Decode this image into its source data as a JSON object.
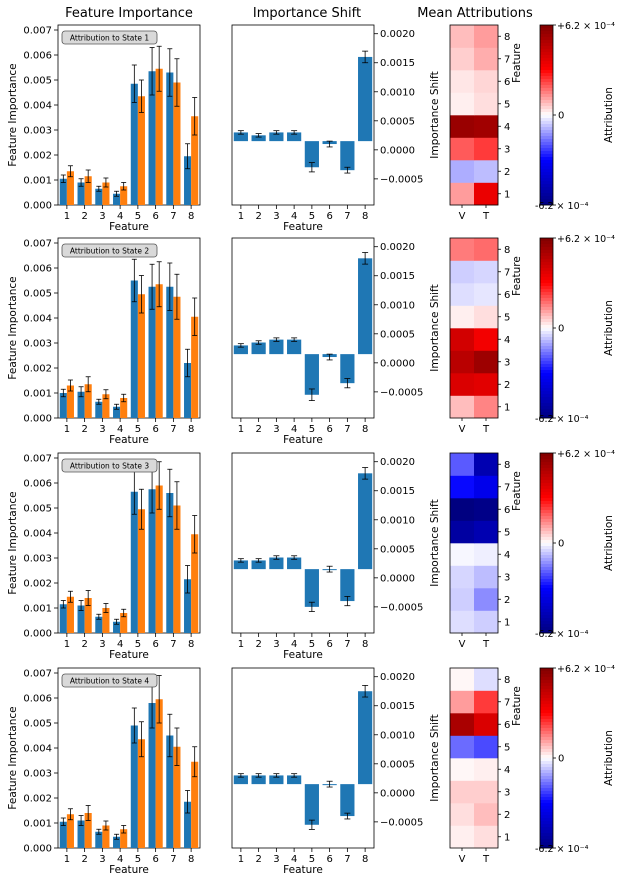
{
  "column_titles": [
    "Feature Importance",
    "Importance Shift",
    "Mean Attributions"
  ],
  "labels": {
    "fi_ylabel": "Feature Importance",
    "xlabel": "Feature",
    "shift_ylabel": "Importance Shift",
    "attr_ylabel": "Feature",
    "colorbar_label": "Attribution",
    "colorbar_top": "+6.2 × 10⁻⁴",
    "colorbar_mid": "0",
    "colorbar_bottom": "-6.2 × 10⁻⁴",
    "heatmap_cols": [
      "V",
      "T"
    ]
  },
  "colors": {
    "blue": "#1f77b4",
    "orange": "#ff7f0e",
    "legend_bg": "#d9d9d9"
  },
  "chart_data": [
    {
      "type": "bar",
      "panel": "feature_importance",
      "state_label": "Attribution to State 1",
      "categories": [
        "1",
        "2",
        "3",
        "4",
        "5",
        "6",
        "7",
        "8"
      ],
      "ylim": [
        0,
        0.0072
      ],
      "yticks": [
        "0.000",
        "0.001",
        "0.002",
        "0.003",
        "0.004",
        "0.005",
        "0.006",
        "0.007"
      ],
      "series": [
        {
          "name": "blue",
          "values": [
            0.00105,
            0.0009,
            0.00065,
            0.00045,
            0.00485,
            0.00535,
            0.0053,
            0.00195
          ],
          "errors": [
            0.00015,
            0.00015,
            0.0001,
            0.0001,
            0.00075,
            0.00095,
            0.00095,
            0.0005
          ]
        },
        {
          "name": "orange",
          "values": [
            0.00135,
            0.00115,
            0.0009,
            0.00075,
            0.00435,
            0.00545,
            0.0049,
            0.00355
          ],
          "errors": [
            0.00022,
            0.00025,
            0.00018,
            0.00015,
            0.00065,
            0.0009,
            0.00095,
            0.00075
          ]
        }
      ],
      "shift": {
        "values": [
          0.0003,
          0.00025,
          0.0003,
          0.0003,
          -0.0003,
          0.0001,
          -0.00035,
          0.0016
        ],
        "errors": [
          3e-05,
          3e-05,
          3e-05,
          3e-05,
          8e-05,
          5e-05,
          5e-05,
          0.0001
        ]
      },
      "heatmap": [
        [
          0.00012,
          0.00036
        ],
        [
          -0.0001,
          -8e-05
        ],
        [
          0.0002,
          0.00024
        ],
        [
          0.00056,
          0.00054
        ],
        [
          2e-05,
          4e-05
        ],
        [
          3e-05,
          5e-05
        ],
        [
          6e-05,
          0.0001
        ],
        [
          8e-05,
          0.00012
        ]
      ]
    },
    {
      "type": "bar",
      "panel": "feature_importance",
      "state_label": "Attribution to State 2",
      "categories": [
        "1",
        "2",
        "3",
        "4",
        "5",
        "6",
        "7",
        "8"
      ],
      "ylim": [
        0,
        0.0072
      ],
      "yticks": [
        "0.000",
        "0.001",
        "0.002",
        "0.003",
        "0.004",
        "0.005",
        "0.006",
        "0.007"
      ],
      "series": [
        {
          "name": "blue",
          "values": [
            0.001,
            0.00105,
            0.00065,
            0.00045,
            0.0055,
            0.00525,
            0.00525,
            0.0022
          ],
          "errors": [
            0.00015,
            0.0002,
            0.0001,
            0.0001,
            0.00085,
            0.0009,
            0.00095,
            0.00055
          ]
        },
        {
          "name": "orange",
          "values": [
            0.0013,
            0.00135,
            0.00095,
            0.0008,
            0.00495,
            0.00535,
            0.00485,
            0.00405
          ],
          "errors": [
            0.00022,
            0.0003,
            0.00018,
            0.00015,
            0.00075,
            0.0009,
            0.0009,
            0.00075
          ]
        }
      ],
      "shift": {
        "values": [
          0.0003,
          0.00035,
          0.0004,
          0.0004,
          -0.00055,
          0.0001,
          -0.00035,
          0.0018
        ],
        "errors": [
          3e-05,
          3e-05,
          3e-05,
          3e-05,
          0.0001,
          5e-05,
          8e-05,
          0.0001
        ]
      },
      "heatmap": [
        [
          8e-05,
          0.00015
        ],
        [
          0.0004,
          0.00038
        ],
        [
          0.00048,
          0.00055
        ],
        [
          0.00042,
          0.00034
        ],
        [
          2e-05,
          4e-05
        ],
        [
          -4e-05,
          -3e-05
        ],
        [
          -6e-05,
          -5e-05
        ],
        [
          0.00016,
          0.00018
        ]
      ]
    },
    {
      "type": "bar",
      "panel": "feature_importance",
      "state_label": "Attribution to State 3",
      "categories": [
        "1",
        "2",
        "3",
        "4",
        "5",
        "6",
        "7",
        "8"
      ],
      "ylim": [
        0,
        0.0072
      ],
      "yticks": [
        "0.000",
        "0.001",
        "0.002",
        "0.003",
        "0.004",
        "0.005",
        "0.006",
        "0.007"
      ],
      "series": [
        {
          "name": "blue",
          "values": [
            0.00115,
            0.0011,
            0.00065,
            0.00045,
            0.00565,
            0.00575,
            0.0056,
            0.00215
          ],
          "errors": [
            0.00015,
            0.0002,
            0.0001,
            0.0001,
            0.0009,
            0.00095,
            0.00095,
            0.00055
          ]
        },
        {
          "name": "orange",
          "values": [
            0.00145,
            0.0014,
            0.001,
            0.0008,
            0.00495,
            0.0059,
            0.0051,
            0.00395
          ],
          "errors": [
            0.00022,
            0.0003,
            0.00018,
            0.00015,
            0.0008,
            0.00095,
            0.00095,
            0.00075
          ]
        }
      ],
      "shift": {
        "values": [
          0.0003,
          0.0003,
          0.00035,
          0.00035,
          -0.0005,
          0.00015,
          -0.0004,
          0.0018
        ],
        "errors": [
          3e-05,
          3e-05,
          3e-05,
          3e-05,
          8e-05,
          5e-05,
          8e-05,
          0.0001
        ]
      },
      "heatmap": [
        [
          -4e-05,
          -6e-05
        ],
        [
          -6e-05,
          -0.00014
        ],
        [
          -5e-05,
          -8e-05
        ],
        [
          -1e-05,
          -2e-05
        ],
        [
          -0.00054,
          -0.0005
        ],
        [
          -0.00062,
          -0.0006
        ],
        [
          -0.0003,
          -0.00036
        ],
        [
          -0.0002,
          -0.0005
        ]
      ]
    },
    {
      "type": "bar",
      "panel": "feature_importance",
      "state_label": "Attribution to State 4",
      "categories": [
        "1",
        "2",
        "3",
        "4",
        "5",
        "6",
        "7",
        "8"
      ],
      "ylim": [
        0,
        0.0072
      ],
      "yticks": [
        "0.000",
        "0.001",
        "0.002",
        "0.003",
        "0.004",
        "0.005",
        "0.006",
        "0.007"
      ],
      "series": [
        {
          "name": "blue",
          "values": [
            0.00105,
            0.0011,
            0.00065,
            0.00045,
            0.0049,
            0.0058,
            0.0045,
            0.00185
          ],
          "errors": [
            0.00015,
            0.0002,
            0.0001,
            0.0001,
            0.0007,
            0.001,
            0.00085,
            0.00045
          ]
        },
        {
          "name": "orange",
          "values": [
            0.00135,
            0.0014,
            0.0009,
            0.00075,
            0.00435,
            0.00595,
            0.00405,
            0.00345
          ],
          "errors": [
            0.00022,
            0.0003,
            0.00018,
            0.00015,
            0.0007,
            0.00095,
            0.00075,
            0.0006
          ]
        }
      ],
      "shift": {
        "values": [
          0.0003,
          0.0003,
          0.0003,
          0.0003,
          -0.00055,
          0.00015,
          -0.0004,
          0.00175
        ],
        "errors": [
          3e-05,
          3e-05,
          3e-05,
          3e-05,
          8e-05,
          5e-05,
          5e-05,
          0.0001
        ]
      },
      "heatmap": [
        [
          2e-05,
          4e-05
        ],
        [
          4e-05,
          8e-05
        ],
        [
          6e-05,
          6e-05
        ],
        [
          1e-05,
          2e-05
        ],
        [
          -0.00018,
          -0.00022
        ],
        [
          0.00052,
          0.0004
        ],
        [
          0.00012,
          0.00024
        ],
        [
          1e-05,
          -4e-05
        ]
      ]
    }
  ],
  "shift_axis": {
    "ylim": [
      -0.00095,
      0.00215
    ],
    "ticks": [
      -0.0005,
      0.0,
      0.0005,
      0.001,
      0.0015,
      0.002
    ],
    "tick_labels": [
      "−0.0005",
      "0.0000",
      "0.0005",
      "0.0010",
      "0.0015",
      "0.0020"
    ]
  },
  "attr_scale": {
    "max": 0.00062
  }
}
